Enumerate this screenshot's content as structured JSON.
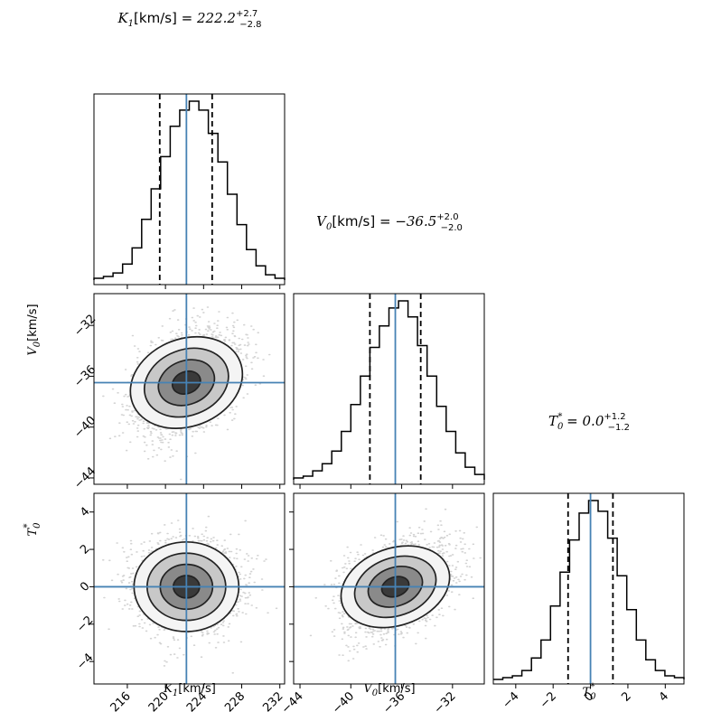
{
  "chart_data": {
    "type": "corner",
    "colors": {
      "truth": "#4682b4",
      "hist": "#000000",
      "quantile": "#000000",
      "scatter": "#9e9e9e",
      "density": "#222222"
    },
    "parameters": [
      {
        "symbol": "K",
        "sub": "1",
        "sup": "",
        "unit": "[km/s]",
        "title_value": "222.2",
        "title_plus": "+2.7",
        "title_minus": "−2.8",
        "median": 222.2,
        "q16": 219.4,
        "q84": 224.9,
        "sigma": 2.75
      },
      {
        "symbol": "V",
        "sub": "0",
        "sup": "",
        "unit": "[km/s]",
        "title_value": "−36.5",
        "title_plus": "+2.0",
        "title_minus": "−2.0",
        "median": -36.5,
        "q16": -38.5,
        "q84": -34.5,
        "sigma": 2.0
      },
      {
        "symbol": "T",
        "sub": "0",
        "sup": "*",
        "unit": "",
        "title_value": "0.0",
        "title_plus": "+1.2",
        "title_minus": "−1.2",
        "median": 0.0,
        "q16": -1.2,
        "q84": 1.2,
        "sigma": 1.2
      }
    ],
    "ranges": [
      [
        212.5,
        232.5
      ],
      [
        -44.5,
        -29.5
      ],
      [
        -5.2,
        5.0
      ]
    ],
    "ticks": [
      {
        "values": [
          216,
          220,
          224,
          228,
          232
        ],
        "labels": [
          "216",
          "220",
          "224",
          "228",
          "232"
        ]
      },
      {
        "values": [
          -44,
          -40,
          -36,
          -32
        ],
        "labels": [
          "−44",
          "−40",
          "−36",
          "−32"
        ]
      },
      {
        "values": [
          -4,
          -2,
          0,
          2,
          4
        ],
        "labels": [
          "−4",
          "−2",
          "0",
          "2",
          "4"
        ]
      }
    ],
    "correlations": {
      "1_0": 0.4,
      "2_0": 0.0,
      "2_1": 0.4
    },
    "histograms": [
      {
        "bin_edges": [
          212.5,
          213.5,
          214.5,
          215.5,
          216.5,
          217.5,
          218.5,
          219.5,
          220.5,
          221.5,
          222.5,
          223.5,
          224.5,
          225.5,
          226.5,
          227.5,
          228.5,
          229.5,
          230.5,
          231.5,
          232.5
        ],
        "counts": [
          0.01,
          0.02,
          0.04,
          0.09,
          0.18,
          0.34,
          0.51,
          0.69,
          0.86,
          0.95,
          1.0,
          0.95,
          0.82,
          0.66,
          0.48,
          0.31,
          0.17,
          0.08,
          0.03,
          0.01
        ]
      },
      {
        "bin_edges": [
          -44.5,
          -43.75,
          -43.0,
          -42.25,
          -41.5,
          -40.75,
          -40.0,
          -39.25,
          -38.5,
          -37.75,
          -37.0,
          -36.25,
          -35.5,
          -34.75,
          -34.0,
          -33.25,
          -32.5,
          -31.75,
          -31.0,
          -30.25,
          -29.5
        ],
        "counts": [
          0.01,
          0.02,
          0.05,
          0.09,
          0.16,
          0.27,
          0.42,
          0.58,
          0.74,
          0.86,
          0.96,
          1.0,
          0.91,
          0.75,
          0.58,
          0.41,
          0.27,
          0.15,
          0.07,
          0.03
        ]
      },
      {
        "bin_edges": [
          -5.2,
          -4.69,
          -4.18,
          -3.67,
          -3.16,
          -2.65,
          -2.14,
          -1.63,
          -1.12,
          -0.61,
          -0.1,
          0.41,
          0.92,
          1.43,
          1.94,
          2.45,
          2.96,
          3.47,
          3.98,
          4.49,
          5.0
        ],
        "counts": [
          0.0,
          0.01,
          0.02,
          0.05,
          0.12,
          0.22,
          0.41,
          0.6,
          0.78,
          0.93,
          1.0,
          0.94,
          0.79,
          0.58,
          0.39,
          0.22,
          0.11,
          0.05,
          0.02,
          0.01
        ]
      }
    ]
  },
  "titles": {
    "t0": {
      "sym": "K",
      "sub": "1",
      "sup": "",
      "unit": "[km/s]",
      "eq": " = ",
      "value": "222.2",
      "plus": "+2.7",
      "minus": "−2.8"
    },
    "t1": {
      "sym": "V",
      "sub": "0",
      "sup": "",
      "unit": "[km/s]",
      "eq": " = ",
      "value": "−36.5",
      "plus": "+2.0",
      "minus": "−2.0"
    },
    "t2": {
      "sym": "T",
      "sub": "0",
      "sup": "*",
      "unit": "",
      "eq": " = ",
      "value": "0.0",
      "plus": "+1.2",
      "minus": "−1.2"
    }
  },
  "axis_labels": {
    "x0": {
      "sym": "K",
      "sub": "1",
      "sup": "",
      "unit": "[km/s]"
    },
    "x1": {
      "sym": "V",
      "sub": "0",
      "sup": "",
      "unit": "[km/s]"
    },
    "x2": {
      "sym": "T",
      "sub": "0",
      "sup": "*",
      "unit": ""
    },
    "y1": {
      "sym": "V",
      "sub": "0",
      "sup": "",
      "unit": "[km/s]"
    },
    "y2": {
      "sym": "T",
      "sub": "0",
      "sup": "*",
      "unit": ""
    }
  }
}
